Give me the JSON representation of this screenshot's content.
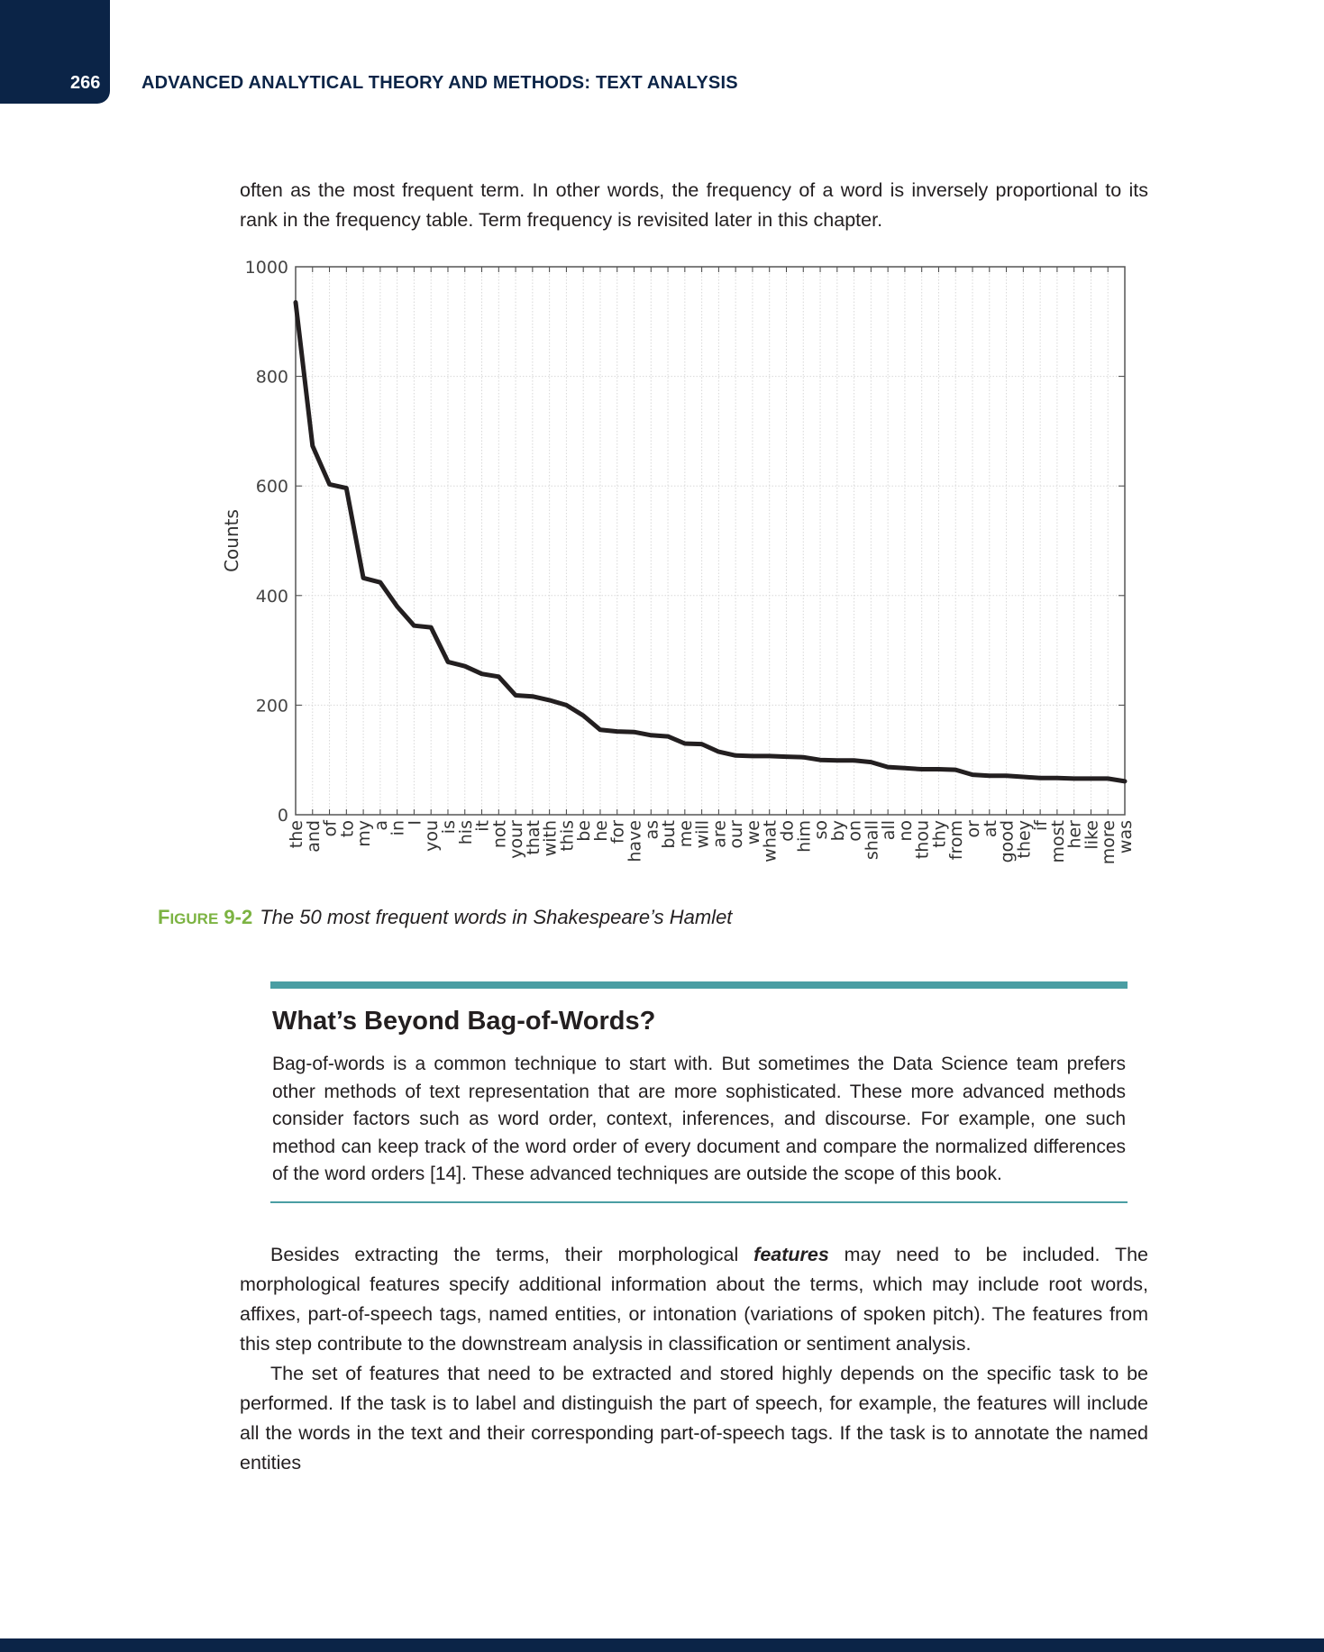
{
  "header": {
    "page_number": "266",
    "running_head": "ADVANCED ANALYTICAL THEORY AND METHODS: TEXT ANALYSIS"
  },
  "intro_paragraph": "often as the most frequent term. In other words, the frequency of a word is inversely proportional to its rank in the frequency table. Term frequency is revisited later in this chapter.",
  "figure": {
    "label_prefix": "F",
    "label_smallcaps": "IGURE",
    "label_number": "9-2",
    "title": "The 50 most frequent words in Shakespeare’s Hamlet"
  },
  "chart_data": {
    "type": "line",
    "ylabel": "Counts",
    "xlabel": "",
    "ylim": [
      0,
      1000
    ],
    "yticks": [
      0,
      200,
      400,
      600,
      800,
      1000
    ],
    "grid": true,
    "line_color": "#231f20",
    "categories": [
      "the",
      "and",
      "of",
      "to",
      "my",
      "a",
      "in",
      "I",
      "you",
      "is",
      "his",
      "it",
      "not",
      "your",
      "that",
      "with",
      "this",
      "be",
      "he",
      "for",
      "have",
      "as",
      "but",
      "me",
      "will",
      "are",
      "our",
      "we",
      "what",
      "do",
      "him",
      "so",
      "by",
      "on",
      "shall",
      "all",
      "no",
      "thou",
      "thy",
      "from",
      "or",
      "at",
      "good",
      "they",
      "if",
      "most",
      "her",
      "like",
      "more",
      "was"
    ],
    "values": [
      935,
      673,
      603,
      596,
      432,
      424,
      380,
      345,
      342,
      279,
      271,
      257,
      252,
      218,
      216,
      209,
      200,
      181,
      155,
      152,
      151,
      145,
      143,
      130,
      129,
      115,
      108,
      107,
      107,
      106,
      105,
      100,
      99,
      99,
      96,
      87,
      85,
      83,
      83,
      82,
      73,
      71,
      71,
      69,
      67,
      67,
      66,
      66,
      66,
      61
    ]
  },
  "sidebar": {
    "title": "What’s Beyond Bag-of-Words?",
    "body": "Bag-of-words is a common technique to start with. But sometimes the Data Science team prefers other methods of text representation that are more sophisticated. These more advanced methods consider factors such as word order, context, inferences, and discourse. For example, one such method can keep track of the word order of every document and compare the normalized differences of the word orders [14]. These advanced techniques are outside the scope of this book."
  },
  "paragraph2": {
    "before": "Besides extracting the terms, their morphological ",
    "emphasis": "features",
    "after": " may need to be included. The morphological features specify additional information about the terms, which may include root words, affixes, part-of-speech tags, named entities, or intonation (variations of spoken pitch). The features from this step contribute to the downstream analysis in classification or sentiment analysis."
  },
  "paragraph3": "The set of features that need to be extracted and stored highly depends on the specific task to be performed. If the task is to label and distinguish the part of speech, for example, the features will include all the words in the text and their corresponding part-of-speech tags. If the task is to annotate the named entities",
  "colors": {
    "header_dark": "#0b2447",
    "figure_label": "#7cb342",
    "sidebar_rule": "#4a9ea3"
  }
}
